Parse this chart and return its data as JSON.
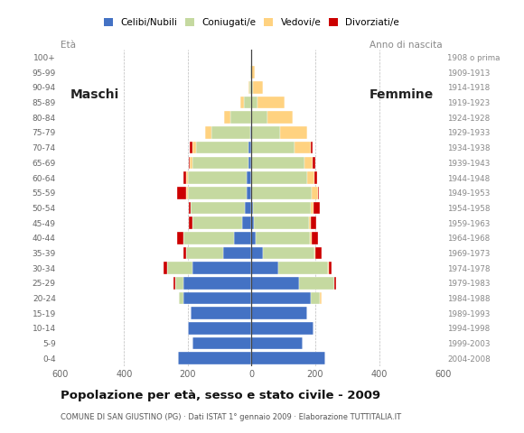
{
  "age_groups": [
    "100+",
    "95-99",
    "90-94",
    "85-89",
    "80-84",
    "75-79",
    "70-74",
    "65-69",
    "60-64",
    "55-59",
    "50-54",
    "45-49",
    "40-44",
    "35-39",
    "30-34",
    "25-29",
    "20-24",
    "15-19",
    "10-14",
    "5-9",
    "0-4"
  ],
  "birth_years": [
    "1908 o prima",
    "1909-1913",
    "1914-1918",
    "1919-1923",
    "1924-1928",
    "1929-1933",
    "1934-1938",
    "1939-1943",
    "1944-1948",
    "1949-1953",
    "1954-1958",
    "1959-1963",
    "1964-1968",
    "1969-1973",
    "1974-1978",
    "1979-1983",
    "1984-1988",
    "1989-1993",
    "1994-1998",
    "1999-2003",
    "2004-2008"
  ],
  "male_celibi": [
    0,
    0,
    0,
    0,
    0,
    5,
    10,
    10,
    15,
    15,
    20,
    30,
    55,
    90,
    185,
    215,
    215,
    190,
    200,
    185,
    230
  ],
  "male_coniugati": [
    0,
    3,
    8,
    25,
    65,
    120,
    165,
    175,
    185,
    185,
    170,
    155,
    160,
    115,
    80,
    25,
    12,
    0,
    0,
    0,
    0
  ],
  "male_vedovi": [
    0,
    0,
    3,
    10,
    22,
    20,
    10,
    8,
    5,
    5,
    0,
    0,
    0,
    0,
    0,
    0,
    0,
    0,
    0,
    0,
    0
  ],
  "male_divorziati": [
    0,
    0,
    0,
    0,
    0,
    0,
    8,
    5,
    8,
    28,
    8,
    12,
    18,
    8,
    12,
    4,
    0,
    0,
    0,
    0,
    0
  ],
  "female_celibi": [
    0,
    0,
    0,
    0,
    0,
    0,
    0,
    0,
    0,
    0,
    5,
    8,
    12,
    35,
    85,
    150,
    185,
    175,
    195,
    160,
    230
  ],
  "female_coniugati": [
    0,
    0,
    5,
    18,
    50,
    90,
    135,
    165,
    175,
    190,
    182,
    172,
    172,
    162,
    155,
    110,
    30,
    0,
    0,
    0,
    0
  ],
  "female_vedovi": [
    3,
    10,
    32,
    85,
    78,
    85,
    52,
    28,
    22,
    18,
    8,
    5,
    4,
    4,
    4,
    0,
    4,
    0,
    0,
    0,
    0
  ],
  "female_divorziati": [
    0,
    0,
    0,
    0,
    0,
    0,
    4,
    8,
    8,
    4,
    18,
    18,
    22,
    18,
    8,
    4,
    0,
    0,
    0,
    0,
    0
  ],
  "color_celibi": "#4472c4",
  "color_coniugati": "#c5d9a0",
  "color_vedovi": "#ffd280",
  "color_divorziati": "#cc0000",
  "legend_labels": [
    "Celibi/Nubili",
    "Coniugati/e",
    "Vedovi/e",
    "Divorziati/e"
  ],
  "title": "Popolazione per età, sesso e stato civile - 2009",
  "subtitle": "COMUNE DI SAN GIUSTINO (PG) · Dati ISTAT 1° gennaio 2009 · Elaborazione TUTTITALIA.IT",
  "label_maschi": "Maschi",
  "label_femmine": "Femmine",
  "label_eta": "Età",
  "label_anno": "Anno di nascita",
  "xlim": 600
}
